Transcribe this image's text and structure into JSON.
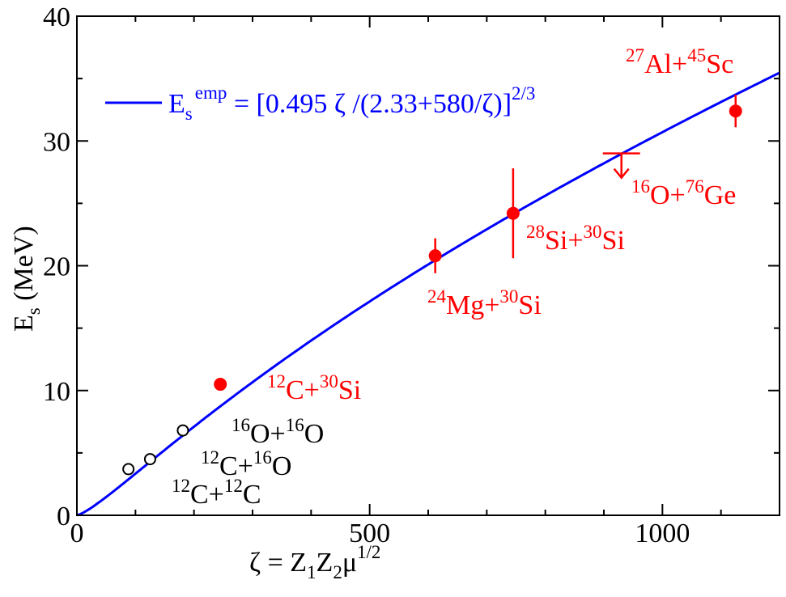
{
  "chart_data": {
    "type": "scatter",
    "xlabel": {
      "prefix": "ζ = Z",
      "sub1": "1",
      "mid": "Z",
      "sub2": "2",
      "mu": "μ",
      "sup": "1/2"
    },
    "ylabel": {
      "main": "E",
      "sub": "s",
      "rest": " (MeV)"
    },
    "xlim": [
      0,
      1200
    ],
    "ylim": [
      0,
      40
    ],
    "x_ticks": [
      0,
      500,
      1000
    ],
    "y_ticks": [
      0,
      10,
      20,
      30,
      40
    ],
    "grid": false,
    "legend": {
      "position": "top-left",
      "prefix": "E",
      "sub": "s",
      "sup": "emp",
      "formula": " = [0.495 ζ /(2.33+580/ζ)]",
      "formula_sup": "2/3",
      "color": "#0000ff"
    },
    "curve": {
      "name": "Es emp",
      "color": "#0000ff",
      "coef": 0.495,
      "a": 2.33,
      "b": 580,
      "power": 0.6667
    },
    "series": [
      {
        "name": "open",
        "color": "#000000",
        "marker": "open-circle",
        "points": [
          {
            "x": 88,
            "y": 3.7,
            "label": {
              "m1": "12",
              "e1": "C+",
              "m2": "12",
              "e2": "C"
            }
          },
          {
            "x": 125,
            "y": 4.5,
            "label": {
              "m1": "12",
              "e1": "C+",
              "m2": "16",
              "e2": "O"
            }
          },
          {
            "x": 181,
            "y": 6.8,
            "label": {
              "m1": "16",
              "e1": "O+",
              "m2": "16",
              "e2": "O"
            }
          }
        ]
      },
      {
        "name": "filled",
        "color": "#ff0000",
        "marker": "filled-circle",
        "points": [
          {
            "x": 245,
            "y": 10.5,
            "label": {
              "m1": "12",
              "e1": "C+",
              "m2": "30",
              "e2": "Si"
            }
          },
          {
            "x": 612,
            "y": 20.8,
            "yerr_low": 19.4,
            "yerr_high": 22.2,
            "label": {
              "m1": "24",
              "e1": "Mg+",
              "m2": "30",
              "e2": "Si"
            }
          },
          {
            "x": 745,
            "y": 24.2,
            "yerr_low": 20.6,
            "yerr_high": 27.8,
            "label": {
              "m1": "28",
              "e1": "Si+",
              "m2": "30",
              "e2": "Si"
            }
          },
          {
            "x": 1125,
            "y": 32.4,
            "yerr_low": 31.1,
            "yerr_high": 33.7,
            "label": {
              "m1": "27",
              "e1": "Al+",
              "m2": "45",
              "e2": "Sc"
            }
          }
        ]
      }
    ],
    "upper_limits": [
      {
        "x": 930,
        "y": 29.0,
        "color": "#ff0000",
        "label": {
          "m1": "16",
          "e1": "O+",
          "m2": "76",
          "e2": "Ge"
        }
      }
    ]
  }
}
